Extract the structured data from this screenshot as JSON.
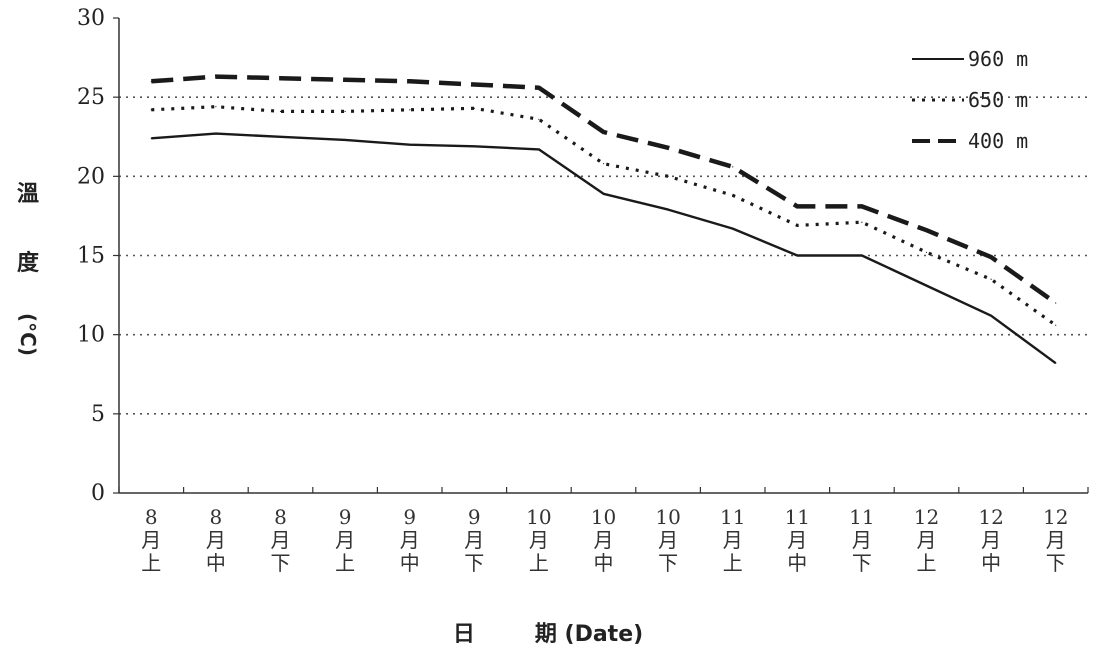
{
  "chart_data": {
    "type": "line",
    "title": "",
    "ylabel_chars": [
      "溫",
      "度"
    ],
    "ylabel_unit": "(°C)",
    "xlabel_chars": [
      "日",
      "期"
    ],
    "xlabel_suffix": "(Date)",
    "ylim": [
      0,
      30
    ],
    "yticks": [
      0,
      5,
      10,
      15,
      20,
      25,
      30
    ],
    "grid": "horizontal dotted",
    "legend_position": "top-right",
    "categories": [
      [
        "8",
        "月",
        "上"
      ],
      [
        "8",
        "月",
        "中"
      ],
      [
        "8",
        "月",
        "下"
      ],
      [
        "9",
        "月",
        "上"
      ],
      [
        "9",
        "月",
        "中"
      ],
      [
        "9",
        "月",
        "下"
      ],
      [
        "10",
        "月",
        "上"
      ],
      [
        "10",
        "月",
        "中"
      ],
      [
        "10",
        "月",
        "下"
      ],
      [
        "11",
        "月",
        "上"
      ],
      [
        "11",
        "月",
        "中"
      ],
      [
        "11",
        "月",
        "下"
      ],
      [
        "12",
        "月",
        "上"
      ],
      [
        "12",
        "月",
        "中"
      ],
      [
        "12",
        "月",
        "下"
      ]
    ],
    "series": [
      {
        "name": "960 m",
        "style": "solid",
        "color": "#1a1a1a",
        "values": [
          22.4,
          22.7,
          22.5,
          22.3,
          22.0,
          21.9,
          21.7,
          18.9,
          17.9,
          16.7,
          15.0,
          15.0,
          13.1,
          11.2,
          8.2
        ]
      },
      {
        "name": "650 m",
        "style": "dotted",
        "color": "#1a1a1a",
        "values": [
          24.2,
          24.4,
          24.1,
          24.1,
          24.2,
          24.3,
          23.6,
          20.8,
          20.0,
          18.8,
          16.9,
          17.1,
          15.2,
          13.5,
          10.6
        ]
      },
      {
        "name": "400 m",
        "style": "dashed",
        "color": "#1a1a1a",
        "values": [
          26.0,
          26.3,
          26.2,
          26.1,
          26.0,
          25.8,
          25.6,
          22.8,
          21.8,
          20.6,
          18.1,
          18.1,
          16.6,
          14.9,
          12.0
        ]
      }
    ]
  }
}
